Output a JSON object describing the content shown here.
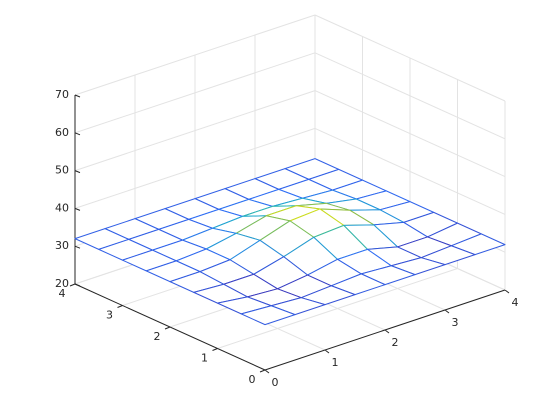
{
  "chart_data": {
    "type": "mesh",
    "x": [
      0,
      0.5,
      1,
      1.5,
      2,
      2.5,
      3,
      3.5,
      4
    ],
    "y": [
      0,
      0.5,
      1,
      1.5,
      2,
      2.5,
      3,
      3.5,
      4
    ],
    "z": [
      [
        32,
        32,
        32,
        32,
        32,
        32,
        32,
        32,
        32
      ],
      [
        32,
        31.5,
        31,
        31.5,
        32,
        31.5,
        31,
        31.5,
        32
      ],
      [
        32,
        31,
        30.5,
        31.5,
        33,
        33,
        31,
        31,
        32
      ],
      [
        32,
        31.5,
        31.5,
        33.5,
        36,
        36.5,
        34,
        32,
        32
      ],
      [
        32,
        32,
        32.5,
        35,
        37.5,
        38,
        35,
        32.5,
        32
      ],
      [
        32,
        32,
        32.5,
        34,
        36,
        36,
        34,
        32.5,
        32
      ],
      [
        32,
        32,
        32,
        32.5,
        33,
        33,
        32.5,
        32,
        32
      ],
      [
        32,
        32,
        32,
        32,
        32,
        32,
        32,
        32,
        32
      ],
      [
        32,
        32,
        32,
        32,
        32,
        32,
        32,
        32,
        32
      ]
    ],
    "xlim": [
      0,
      4
    ],
    "ylim": [
      0,
      4
    ],
    "zlim": [
      20,
      70
    ],
    "xticks": [
      0,
      1,
      2,
      3,
      4
    ],
    "yticks": [
      0,
      1,
      2,
      3,
      4
    ],
    "zticks": [
      20,
      30,
      40,
      50,
      60,
      70
    ],
    "grid": true,
    "colormap": [
      "#3e26a8",
      "#2f6ff5",
      "#1bb6c4",
      "#a5c02b",
      "#f9fb0e"
    ]
  }
}
